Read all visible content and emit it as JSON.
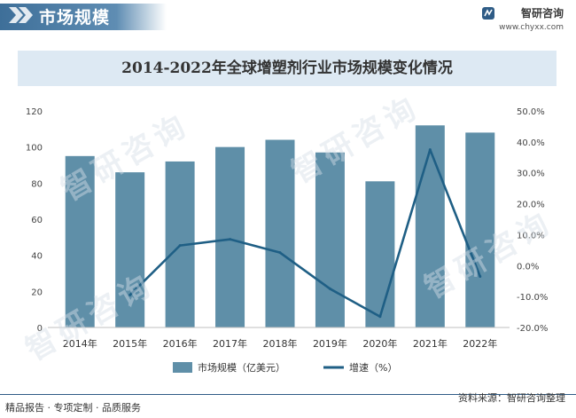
{
  "header": {
    "section_title": "市场规模",
    "brand_name": "智研咨询",
    "brand_url": "www.chyxx.com"
  },
  "watermark_text": "智研咨询",
  "footer": {
    "left_text": "精品报告 · 专项定制 · 品质服务",
    "source_text": "资料来源：智研咨询整理"
  },
  "colors": {
    "bar": "#5f8fa8",
    "line": "#1f5f85",
    "header_bar": "#3e6f99",
    "title_bg": "#dde9f3"
  },
  "chart_data": {
    "type": "bar",
    "title": "2014-2022年全球增塑剂行业市场规模变化情况",
    "categories": [
      "2014年",
      "2015年",
      "2016年",
      "2017年",
      "2018年",
      "2019年",
      "2020年",
      "2021年",
      "2022年"
    ],
    "series": [
      {
        "name": "市场规模（亿美元）",
        "type": "bar",
        "axis": "left",
        "values": [
          95,
          86,
          92,
          100,
          104,
          97,
          81,
          112,
          108
        ]
      },
      {
        "name": "增速（%）",
        "type": "line",
        "axis": "right",
        "values": [
          null,
          -9.5,
          6.5,
          8.5,
          4.2,
          -7.5,
          -16.5,
          37.5,
          -3.5
        ]
      }
    ],
    "y_left": {
      "min": 0,
      "max": 120,
      "ticks": [
        "0",
        "20",
        "40",
        "60",
        "80",
        "100",
        "120"
      ]
    },
    "y_right": {
      "min": -20,
      "max": 50,
      "ticks": [
        "-20.0%",
        "-10.0%",
        "0.0%",
        "10.0%",
        "20.0%",
        "30.0%",
        "40.0%",
        "50.0%"
      ]
    },
    "grid": false,
    "legend_position": "bottom"
  }
}
